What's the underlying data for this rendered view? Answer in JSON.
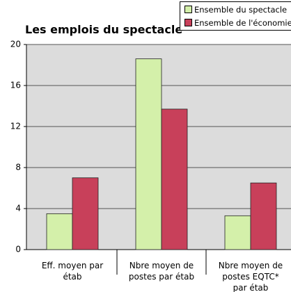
{
  "chart_data": {
    "type": "bar",
    "title": "Les emplois du spectacle",
    "categories": [
      "Eff. moyen par étab",
      "Nbre moyen de postes par étab",
      "Nbre moyen de postes EQTC* par étab"
    ],
    "series": [
      {
        "name": "Ensemble du spectacle",
        "color": "#d4f0aa",
        "values": [
          3.5,
          18.6,
          3.3
        ]
      },
      {
        "name": "Ensemble de l'économie",
        "color": "#c8405a",
        "values": [
          7.0,
          13.7,
          6.5
        ]
      }
    ],
    "ylim": [
      0,
      20
    ],
    "yticks": [
      0,
      4,
      8,
      12,
      16,
      20
    ],
    "grid": true,
    "legend": "upper right"
  }
}
